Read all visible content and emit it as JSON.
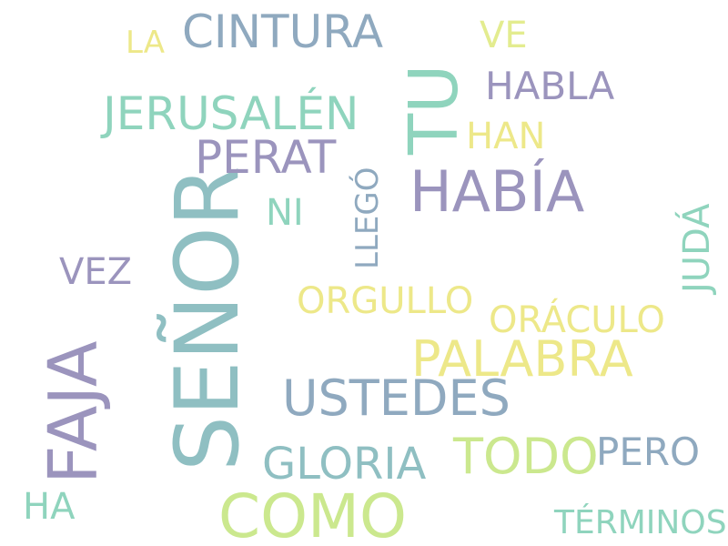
{
  "palette": {
    "purple": "#9b94bd",
    "slate": "#8fa9bf",
    "mint": "#8fd4bd",
    "teal": "#8fbfc2",
    "lime": "#cbe88e",
    "yellow": "#ede889",
    "pale_yellow": "#e3ec8f"
  },
  "words": [
    {
      "text": "SEÑOR",
      "rotated": true
    },
    {
      "text": "FAJA",
      "rotated": true
    },
    {
      "text": "TU",
      "rotated": true
    },
    {
      "text": "HABÍA",
      "rotated": false
    },
    {
      "text": "COMO",
      "rotated": false
    },
    {
      "text": "PALABRA",
      "rotated": false
    },
    {
      "text": "USTEDES",
      "rotated": false
    },
    {
      "text": "CINTURA",
      "rotated": false
    },
    {
      "text": "JERUSALÉN",
      "rotated": false
    },
    {
      "text": "PERAT",
      "rotated": false
    },
    {
      "text": "TODO",
      "rotated": false
    },
    {
      "text": "GLORIA",
      "rotated": false
    },
    {
      "text": "HABLA",
      "rotated": false
    },
    {
      "text": "ORGULLO",
      "rotated": false
    },
    {
      "text": "ORÁCULO",
      "rotated": false
    },
    {
      "text": "PERO",
      "rotated": false
    },
    {
      "text": "VEZ",
      "rotated": false
    },
    {
      "text": "TÉRMINOS",
      "rotated": false
    },
    {
      "text": "HAN",
      "rotated": false
    },
    {
      "text": "VE",
      "rotated": false
    },
    {
      "text": "NI",
      "rotated": false
    },
    {
      "text": "HA",
      "rotated": false
    },
    {
      "text": "LA",
      "rotated": false
    },
    {
      "text": "JUDÁ",
      "rotated": true
    },
    {
      "text": "LLEGÓ",
      "rotated": true
    }
  ]
}
